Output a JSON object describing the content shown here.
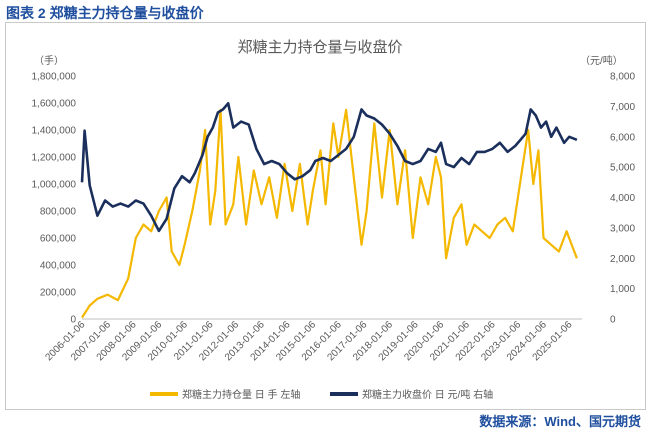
{
  "figure_caption": "图表 2  郑糖主力持仓量与收盘价",
  "source_note": "数据来源：Wind、国元期货",
  "chart_data": {
    "type": "line",
    "title": "郑糖主力持仓量与收盘价",
    "left_unit": "（手）",
    "right_unit": "（元/吨）",
    "y_left_lim": [
      0,
      1800000
    ],
    "y_left_ticks": [
      "0",
      "200,000",
      "400,000",
      "600,000",
      "800,000",
      "1,000,000",
      "1,200,000",
      "1,400,000",
      "1,600,000",
      "1,800,000"
    ],
    "y_right_lim": [
      0,
      8000
    ],
    "y_right_ticks": [
      "0",
      "1,000",
      "2,000",
      "3,000",
      "4,000",
      "5,000",
      "6,000",
      "7,000",
      "8,000"
    ],
    "x_ticks": [
      "2006-01-06",
      "2007-01-06",
      "2008-01-06",
      "2009-01-06",
      "2010-01-06",
      "2011-01-06",
      "2012-01-06",
      "2013-01-06",
      "2014-01-06",
      "2015-01-06",
      "2016-01-06",
      "2017-01-06",
      "2018-01-06",
      "2019-01-06",
      "2020-01-06",
      "2021-01-06",
      "2022-01-06",
      "2023-01-06",
      "2024-01-06",
      "2025-01-06"
    ],
    "series": [
      {
        "name": "郑糖主力持仓量 日 手  左轴",
        "axis": "left",
        "color": "#f5b800",
        "x": [
          2006.0,
          2006.3,
          2006.6,
          2007.0,
          2007.4,
          2007.8,
          2008.1,
          2008.4,
          2008.7,
          2009.0,
          2009.3,
          2009.5,
          2009.8,
          2010.0,
          2010.3,
          2010.6,
          2010.8,
          2011.0,
          2011.2,
          2011.4,
          2011.6,
          2011.9,
          2012.1,
          2012.4,
          2012.7,
          2013.0,
          2013.3,
          2013.6,
          2013.9,
          2014.2,
          2014.5,
          2014.8,
          2015.0,
          2015.3,
          2015.5,
          2015.8,
          2016.0,
          2016.3,
          2016.6,
          2016.9,
          2017.1,
          2017.4,
          2017.7,
          2018.0,
          2018.3,
          2018.6,
          2018.9,
          2019.2,
          2019.5,
          2019.8,
          2020.0,
          2020.2,
          2020.5,
          2020.8,
          2021.0,
          2021.3,
          2021.6,
          2021.9,
          2022.2,
          2022.5,
          2022.8,
          2023.0,
          2023.2,
          2023.4,
          2023.6,
          2023.8,
          2024.0,
          2024.3,
          2024.6,
          2024.9,
          2025.1,
          2025.3
        ],
        "values": [
          10000,
          100000,
          150000,
          180000,
          140000,
          300000,
          600000,
          700000,
          650000,
          800000,
          900000,
          500000,
          400000,
          550000,
          800000,
          1100000,
          1400000,
          700000,
          950000,
          1550000,
          700000,
          850000,
          1200000,
          700000,
          1100000,
          850000,
          1050000,
          750000,
          1150000,
          800000,
          1150000,
          700000,
          950000,
          1250000,
          850000,
          1450000,
          1200000,
          1550000,
          1050000,
          550000,
          800000,
          1450000,
          900000,
          1400000,
          850000,
          1250000,
          600000,
          1050000,
          850000,
          1200000,
          1050000,
          450000,
          750000,
          850000,
          550000,
          700000,
          650000,
          600000,
          700000,
          750000,
          650000,
          900000,
          1150000,
          1400000,
          1000000,
          1250000,
          600000,
          550000,
          500000,
          650000,
          550000,
          450000
        ]
      },
      {
        "name": "郑糖主力收盘价 日 元/吨  右轴",
        "axis": "right",
        "color": "#1b2f5c",
        "x": [
          2006.0,
          2006.1,
          2006.3,
          2006.6,
          2006.9,
          2007.2,
          2007.5,
          2007.8,
          2008.1,
          2008.4,
          2008.7,
          2009.0,
          2009.3,
          2009.6,
          2009.9,
          2010.2,
          2010.4,
          2010.7,
          2010.9,
          2011.1,
          2011.3,
          2011.5,
          2011.7,
          2011.9,
          2012.2,
          2012.5,
          2012.8,
          2013.1,
          2013.4,
          2013.7,
          2014.0,
          2014.3,
          2014.6,
          2014.9,
          2015.1,
          2015.4,
          2015.7,
          2016.0,
          2016.3,
          2016.6,
          2016.9,
          2017.1,
          2017.4,
          2017.7,
          2018.0,
          2018.3,
          2018.6,
          2018.9,
          2019.2,
          2019.5,
          2019.8,
          2020.0,
          2020.2,
          2020.5,
          2020.8,
          2021.1,
          2021.4,
          2021.7,
          2022.0,
          2022.3,
          2022.6,
          2022.9,
          2023.1,
          2023.3,
          2023.5,
          2023.7,
          2023.9,
          2024.1,
          2024.3,
          2024.5,
          2024.8,
          2025.0,
          2025.3
        ],
        "values": [
          4500,
          6200,
          4400,
          3400,
          3900,
          3700,
          3800,
          3700,
          3900,
          3800,
          3400,
          2900,
          3300,
          4300,
          4700,
          4500,
          4800,
          5400,
          6000,
          6300,
          6800,
          6900,
          7100,
          6300,
          6500,
          6400,
          5600,
          5100,
          5200,
          5100,
          4800,
          4600,
          4700,
          4900,
          5200,
          5300,
          5200,
          5400,
          5600,
          6000,
          6900,
          6700,
          6600,
          6400,
          6100,
          5700,
          5200,
          5100,
          5200,
          5600,
          5500,
          5800,
          5100,
          5000,
          5300,
          5100,
          5500,
          5500,
          5600,
          5800,
          5500,
          5700,
          5900,
          6100,
          6900,
          6700,
          6300,
          6500,
          6000,
          6300,
          5800,
          6000,
          5900
        ]
      }
    ]
  }
}
